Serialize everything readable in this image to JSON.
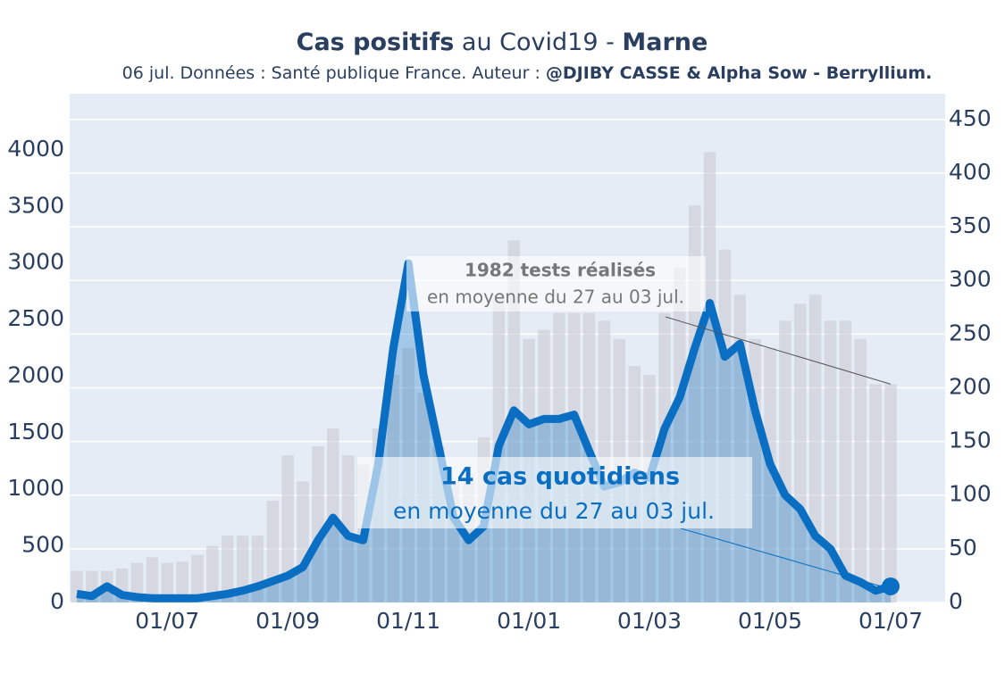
{
  "chart_data": {
    "type": "bar-line",
    "title_parts": [
      "Cas positifs",
      " au Covid19 - ",
      "Marne"
    ],
    "subtitle_parts": [
      "06 jul. Données : Santé publique France. Auteur : ",
      "@DJIBY CASSE & Alpha Sow - Berryllium."
    ],
    "categories": [
      null,
      null,
      null,
      null,
      null,
      null,
      "01/07",
      null,
      null,
      null,
      null,
      null,
      null,
      null,
      "01/09",
      null,
      null,
      null,
      null,
      null,
      null,
      null,
      "01/11",
      null,
      null,
      null,
      null,
      null,
      null,
      null,
      "01/01",
      null,
      null,
      null,
      null,
      null,
      null,
      null,
      "01/03",
      null,
      null,
      null,
      null,
      null,
      null,
      null,
      "01/05",
      null,
      null,
      null,
      null,
      null,
      null,
      null,
      "01/07"
    ],
    "series": [
      {
        "color": "#c9ccd2",
        "values": [
          280,
          280,
          280,
          300,
          350,
          400,
          350,
          360,
          420,
          500,
          590,
          590,
          590,
          900,
          1300,
          1070,
          1380,
          1540,
          1300,
          1220,
          1540,
          2010,
          2250,
          1850,
          1380,
          1070,
          1140,
          1460,
          2720,
          3200,
          2330,
          2410,
          2560,
          2560,
          2560,
          2490,
          2330,
          2090,
          2010,
          2560,
          2960,
          3510,
          3980,
          3120,
          2720,
          2330,
          2250,
          2490,
          2640,
          2720,
          2490,
          2490,
          2330,
          1930,
          1930
        ]
      },
      {
        "color": "#0a6fc2",
        "axis": "y2",
        "values": [
          8,
          6,
          15,
          7,
          5,
          4,
          4,
          4,
          4,
          6,
          8,
          11,
          15,
          20,
          25,
          33,
          58,
          79,
          62,
          58,
          129,
          237,
          316,
          212,
          146,
          79,
          58,
          71,
          146,
          179,
          166,
          171,
          171,
          175,
          141,
          108,
          112,
          121,
          116,
          162,
          191,
          237,
          279,
          229,
          241,
          179,
          129,
          100,
          87,
          62,
          50,
          25,
          19,
          11,
          15
        ]
      }
    ],
    "ylim": [
      0,
      4497
    ],
    "yticks": [
      0,
      500,
      1000,
      1500,
      2000,
      2500,
      3000,
      3500,
      4000
    ],
    "y2lim": [
      0,
      474
    ],
    "y2ticks": [
      0,
      50,
      100,
      150,
      200,
      250,
      300,
      350,
      400,
      450
    ],
    "grid": true,
    "annotations": [
      {
        "title": "1982 tests réalisés",
        "text": "en moyenne du 27 au 03 jul."
      },
      {
        "title": "14 cas quotidiens",
        "text": "en moyenne du 27 au 03 jul."
      }
    ]
  }
}
